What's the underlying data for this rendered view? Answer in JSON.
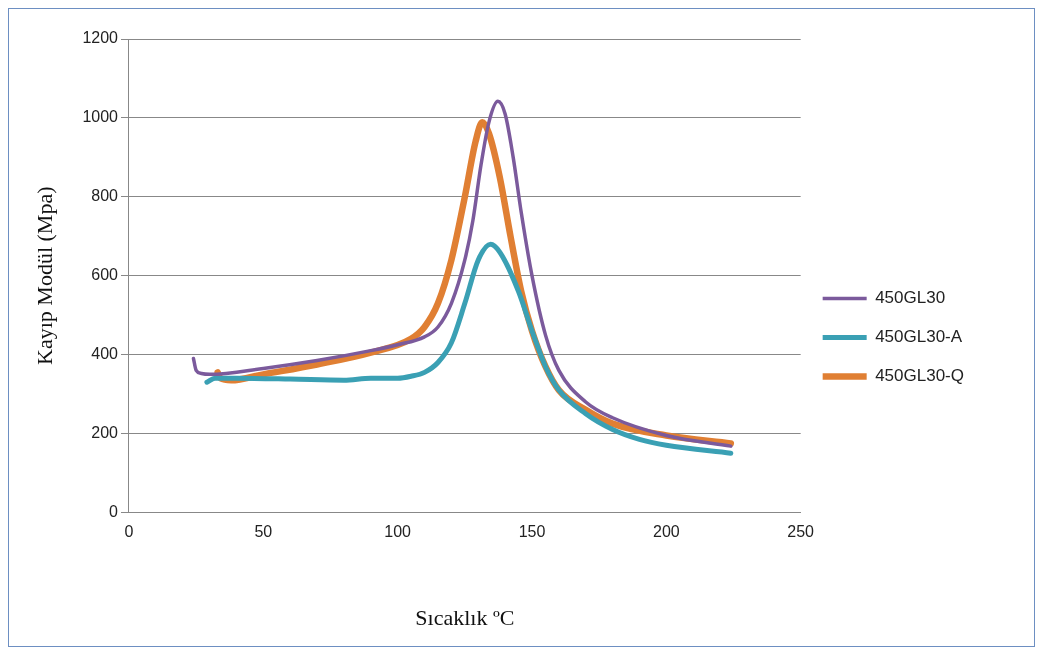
{
  "chart_data": {
    "type": "line",
    "xlabel": "Sıcaklık ºC",
    "ylabel": "Kayıp Modül (Mpa)",
    "xlim": [
      0,
      250
    ],
    "xticks": [
      0,
      50,
      100,
      150,
      200,
      250
    ],
    "ylim": [
      0,
      1200
    ],
    "yticks": [
      0,
      200,
      400,
      600,
      800,
      1000,
      1200
    ],
    "grid": "y",
    "legend": "right",
    "marker": "none",
    "line_style": "solid",
    "series": [
      {
        "name": "450GL30",
        "color": "#7b5a9c",
        "x": [
          24,
          25,
          27,
          30,
          50,
          70,
          90,
          100,
          110,
          115,
          120,
          125,
          128,
          131,
          134,
          137.3,
          140,
          143,
          146,
          150,
          155,
          160,
          170,
          180,
          200,
          224
        ],
        "values": [
          390,
          360,
          352,
          350,
          365,
          385,
          410,
          425,
          445,
          470,
          530,
          640,
          740,
          880,
          990,
          1042,
          1010,
          900,
          760,
          600,
          450,
          360,
          280,
          240,
          195,
          168
        ]
      },
      {
        "name": "450GL30-A",
        "color": "#3aa0b4",
        "x": [
          29,
          32,
          40,
          60,
          80,
          90,
          100,
          105,
          110,
          115,
          120,
          125,
          130,
          134.6,
          138,
          145,
          150,
          155,
          160,
          170,
          180,
          190,
          200,
          224
        ],
        "values": [
          330,
          340,
          340,
          338,
          335,
          340,
          340,
          345,
          355,
          380,
          430,
          530,
          640,
          680,
          660,
          560,
          460,
          370,
          310,
          250,
          210,
          185,
          170,
          150
        ]
      },
      {
        "name": "450GL30-Q",
        "color": "#e07f33",
        "x": [
          33,
          34,
          38,
          50,
          70,
          90,
          105,
          110,
          115,
          120,
          125,
          129,
          131.5,
          134,
          138,
          142,
          146,
          150,
          155,
          160,
          170,
          180,
          200,
          224
        ],
        "values": [
          355,
          340,
          335,
          350,
          375,
          405,
          440,
          470,
          530,
          640,
          800,
          940,
          989,
          960,
          850,
          700,
          560,
          460,
          370,
          310,
          260,
          225,
          195,
          175
        ]
      }
    ]
  }
}
